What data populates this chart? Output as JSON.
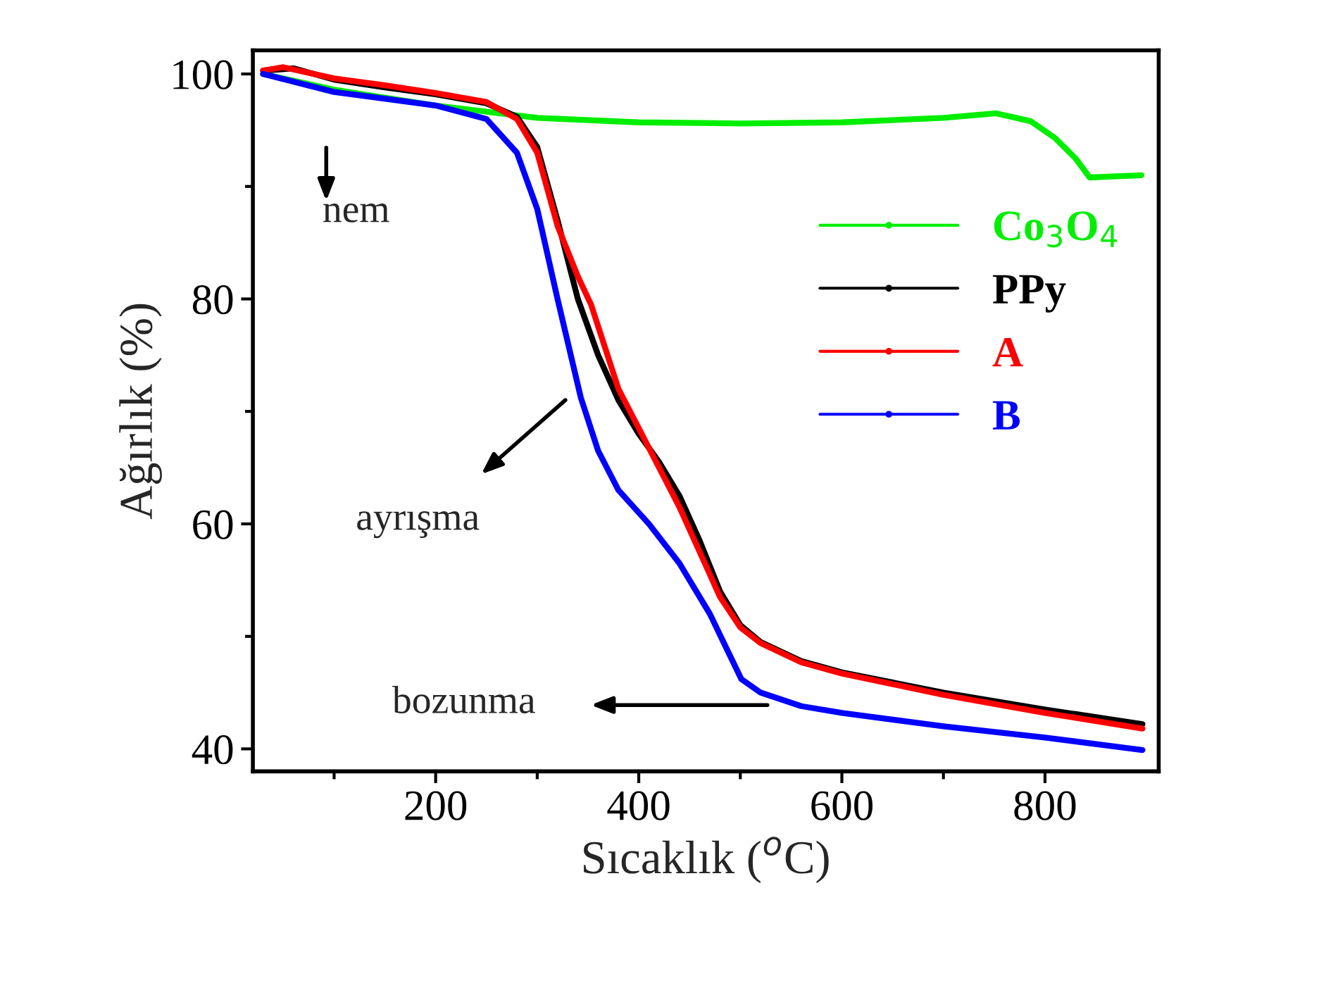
{
  "chart_data": {
    "type": "line",
    "xlabel": "Sıcaklık ($^{o}$C)",
    "ylabel": "Ağırlık (%)",
    "xlim": [
      20,
      912
    ],
    "ylim": [
      38,
      102.1
    ],
    "xticks": [
      {
        "value": 100,
        "label": null
      },
      200,
      {
        "value": 300,
        "label": null
      },
      400,
      {
        "value": 500,
        "label": null
      },
      600,
      {
        "value": 700,
        "label": null
      },
      800
    ],
    "yticks": [
      40,
      {
        "value": 50,
        "label": null
      },
      60,
      {
        "value": 70,
        "label": null
      },
      80,
      {
        "value": 90,
        "label": null
      },
      100
    ],
    "grid": false,
    "legend": "right",
    "line_style": "solid",
    "series": [
      {
        "name": "Co$_{3}$O$_{4}$",
        "color": "#00ee00",
        "x": [
          30,
          100,
          200,
          300,
          400,
          500,
          600,
          700,
          752,
          786,
          810,
          830,
          844,
          870,
          895
        ],
        "values": [
          100,
          98.6,
          97.2,
          96.1,
          95.7,
          95.6,
          95.7,
          96.1,
          96.5,
          95.8,
          94.3,
          92.5,
          90.8,
          90.9,
          91.0
        ]
      },
      {
        "name": "PPy",
        "color": "#000000",
        "x": [
          30,
          60,
          100,
          150,
          200,
          250,
          280,
          300,
          320,
          340,
          360,
          380,
          400,
          420,
          440,
          460,
          480,
          500,
          520,
          560,
          600,
          700,
          800,
          896
        ],
        "values": [
          100.3,
          100.5,
          99.5,
          98.8,
          98.2,
          97.4,
          96.2,
          93.5,
          87,
          80,
          75,
          71,
          68,
          65.5,
          62.5,
          58.5,
          54,
          51,
          49.5,
          47.8,
          46.8,
          45,
          43.5,
          42.2
        ]
      },
      {
        "name": "A",
        "color": "#ff0000",
        "x": [
          30,
          50,
          100,
          150,
          200,
          250,
          280,
          300,
          320,
          340,
          353,
          380,
          400,
          420,
          440,
          460,
          480,
          500,
          520,
          560,
          600,
          700,
          800,
          896
        ],
        "values": [
          100.3,
          100.6,
          99.6,
          99.0,
          98.3,
          97.5,
          96.0,
          93.0,
          86.5,
          82,
          79.5,
          72,
          68.5,
          65,
          61.5,
          57.5,
          53.5,
          50.8,
          49.4,
          47.7,
          46.7,
          44.8,
          43.2,
          41.8
        ]
      },
      {
        "name": "B",
        "color": "#0000ff",
        "x": [
          30,
          100,
          200,
          250,
          280,
          300,
          320,
          343,
          360,
          380,
          390,
          410,
          440,
          470,
          501,
          520,
          560,
          600,
          700,
          800,
          896
        ],
        "values": [
          100,
          98.4,
          97.2,
          96,
          93,
          88,
          80,
          71.2,
          66.5,
          63,
          62,
          60,
          56.5,
          52,
          46.2,
          45,
          43.8,
          43.2,
          42,
          41,
          39.9
        ]
      }
    ],
    "annotations": [
      "nem",
      "ayrışma",
      "bozunma"
    ]
  }
}
